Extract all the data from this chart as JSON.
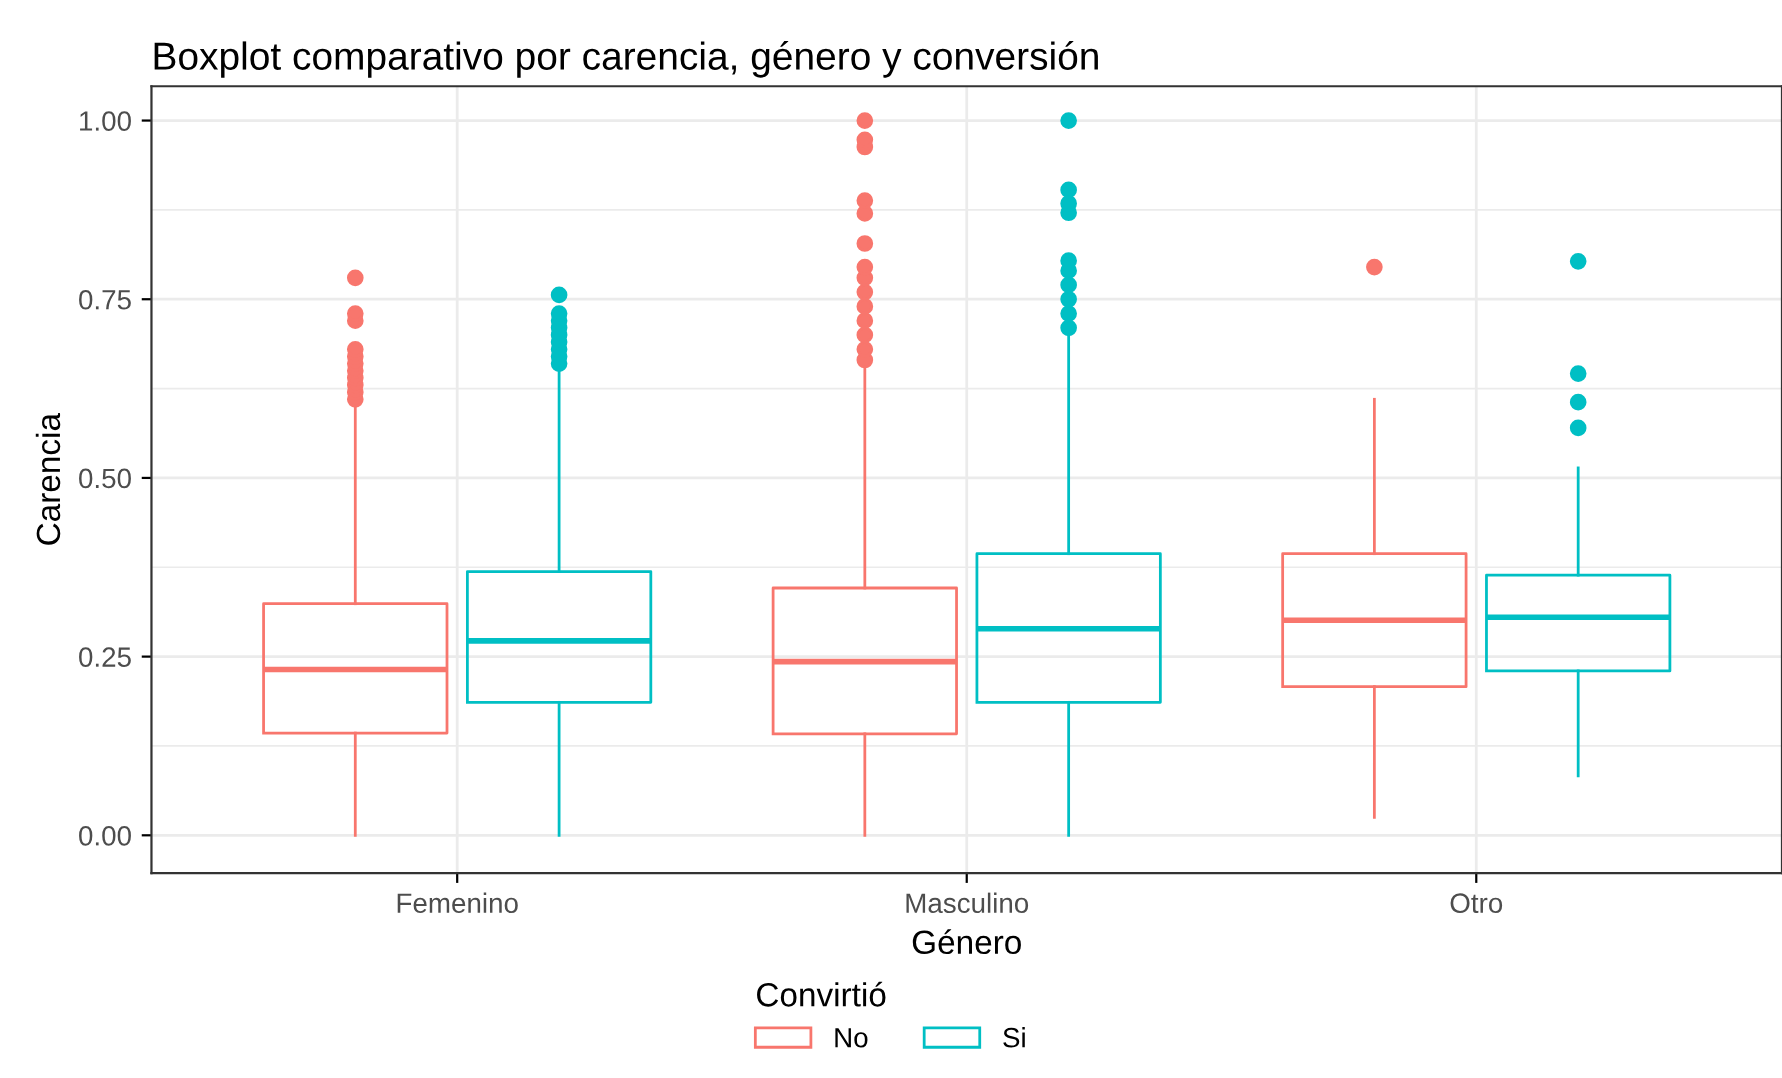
{
  "chart_data": {
    "type": "box",
    "title": "Boxplot comparativo por carencia, género y conversión",
    "xlabel": "Género",
    "ylabel": "Carencia",
    "legend_title": "Convirtió",
    "legend": "bottom",
    "grid": true,
    "categories": [
      "Femenino",
      "Masculino",
      "Otro"
    ],
    "ylim": [
      -0.053,
      1.048
    ],
    "yticks": [
      {
        "value": 0,
        "label": "0.00"
      },
      {
        "value": 0.25,
        "label": "0.25"
      },
      {
        "value": 0.5,
        "label": "0.50"
      },
      {
        "value": 0.75,
        "label": "0.75"
      },
      {
        "value": 1,
        "label": "1.00"
      }
    ],
    "series": [
      {
        "name": "No",
        "color": "#f8766d",
        "boxes": [
          {
            "low": 0,
            "q1": 0.143,
            "median": 0.232,
            "q3": 0.324,
            "high": 0.598,
            "outliers": [
              0.61,
              0.62,
              0.63,
              0.64,
              0.65,
              0.66,
              0.67,
              0.68,
              0.72,
              0.73,
              0.78
            ]
          },
          {
            "low": 0,
            "q1": 0.142,
            "median": 0.243,
            "q3": 0.346,
            "high": 0.654,
            "outliers": [
              0.665,
              0.68,
              0.7,
              0.72,
              0.74,
              0.76,
              0.78,
              0.795,
              0.828,
              0.87,
              0.888,
              0.963,
              0.973,
              1.0
            ]
          },
          {
            "low": 0.025,
            "q1": 0.208,
            "median": 0.301,
            "q3": 0.394,
            "high": 0.61,
            "outliers": [
              0.795
            ]
          }
        ]
      },
      {
        "name": "Si",
        "color": "#00bfc4",
        "boxes": [
          {
            "low": 0,
            "q1": 0.186,
            "median": 0.272,
            "q3": 0.369,
            "high": 0.65,
            "outliers": [
              0.66,
              0.67,
              0.68,
              0.69,
              0.7,
              0.71,
              0.72,
              0.73,
              0.756
            ]
          },
          {
            "low": 0,
            "q1": 0.186,
            "median": 0.289,
            "q3": 0.394,
            "high": 0.697,
            "outliers": [
              0.71,
              0.73,
              0.75,
              0.77,
              0.79,
              0.804,
              0.871,
              0.884,
              0.903,
              1.0
            ]
          },
          {
            "low": 0.083,
            "q1": 0.23,
            "median": 0.305,
            "q3": 0.364,
            "high": 0.514,
            "outliers": [
              0.57,
              0.606,
              0.646,
              0.803
            ]
          }
        ]
      }
    ]
  }
}
